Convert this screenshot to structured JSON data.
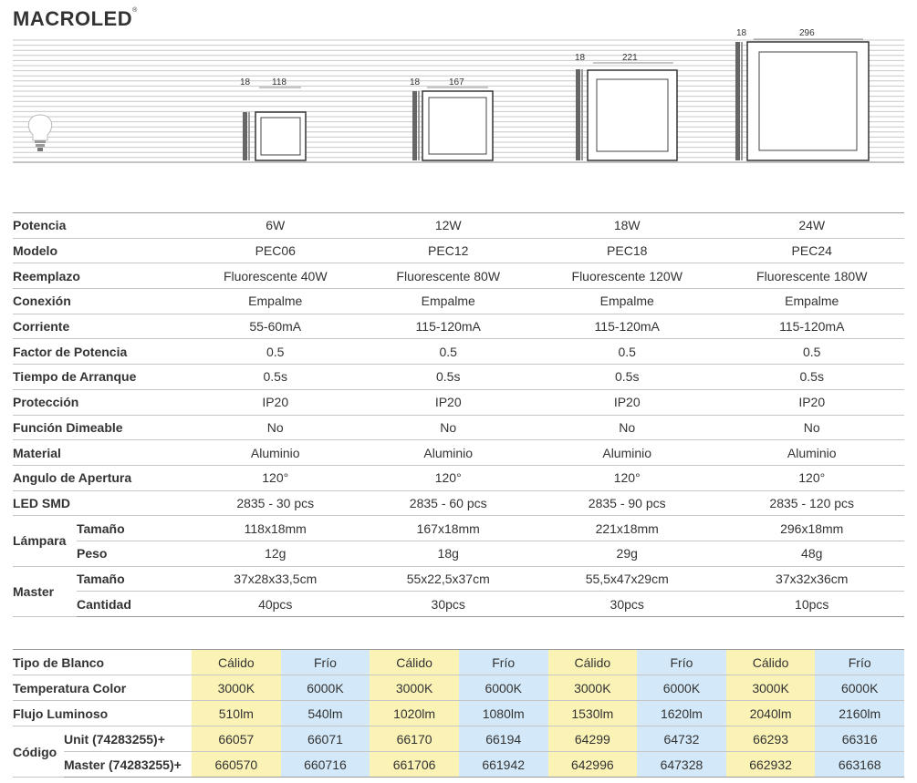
{
  "brand": "MACROLED",
  "brand_mark": "®",
  "diagram": {
    "dims": [
      {
        "depth": "18",
        "width": "118"
      },
      {
        "depth": "18",
        "width": "167"
      },
      {
        "depth": "18",
        "width": "221"
      },
      {
        "depth": "18",
        "width": "296"
      }
    ]
  },
  "spec": {
    "rows": [
      {
        "label": "Potencia",
        "values": [
          "6W",
          "12W",
          "18W",
          "24W"
        ]
      },
      {
        "label": "Modelo",
        "values": [
          "PEC06",
          "PEC12",
          "PEC18",
          "PEC24"
        ]
      },
      {
        "label": "Reemplazo",
        "values": [
          "Fluorescente 40W",
          "Fluorescente 80W",
          "Fluorescente 120W",
          "Fluorescente 180W"
        ]
      },
      {
        "label": "Conexión",
        "values": [
          "Empalme",
          "Empalme",
          "Empalme",
          "Empalme"
        ]
      },
      {
        "label": "Corriente",
        "values": [
          "55-60mA",
          "115-120mA",
          "115-120mA",
          "115-120mA"
        ]
      },
      {
        "label": "Factor de Potencia",
        "values": [
          "0.5",
          "0.5",
          "0.5",
          "0.5"
        ]
      },
      {
        "label": "Tiempo de Arranque",
        "values": [
          "0.5s",
          "0.5s",
          "0.5s",
          "0.5s"
        ]
      },
      {
        "label": "Protección",
        "values": [
          "IP20",
          "IP20",
          "IP20",
          "IP20"
        ]
      },
      {
        "label": "Función Dimeable",
        "values": [
          "No",
          "No",
          "No",
          "No"
        ]
      },
      {
        "label": "Material",
        "values": [
          "Aluminio",
          "Aluminio",
          "Aluminio",
          "Aluminio"
        ]
      },
      {
        "label": "Angulo de Apertura",
        "values": [
          "120°",
          "120°",
          "120°",
          "120°"
        ]
      },
      {
        "label": "LED SMD",
        "values": [
          "2835 - 30 pcs",
          "2835 - 60 pcs",
          "2835 - 90 pcs",
          "2835 - 120 pcs"
        ]
      }
    ],
    "lampara": {
      "label": "Lámpara",
      "tamano": {
        "label": "Tamaño",
        "values": [
          "118x18mm",
          "167x18mm",
          "221x18mm",
          "296x18mm"
        ]
      },
      "peso": {
        "label": "Peso",
        "values": [
          "12g",
          "18g",
          "29g",
          "48g"
        ]
      }
    },
    "master": {
      "label": "Master",
      "tamano": {
        "label": "Tamaño",
        "values": [
          "37x28x33,5cm",
          "55x22,5x37cm",
          "55,5x47x29cm",
          "37x32x36cm"
        ]
      },
      "cantidad": {
        "label": "Cantidad",
        "values": [
          "40pcs",
          "30pcs",
          "30pcs",
          "10pcs"
        ]
      }
    }
  },
  "tone": {
    "tipo": {
      "label": "Tipo de Blanco",
      "values": [
        "Cálido",
        "Frío",
        "Cálido",
        "Frío",
        "Cálido",
        "Frío",
        "Cálido",
        "Frío"
      ]
    },
    "temp": {
      "label": "Temperatura Color",
      "values": [
        "3000K",
        "6000K",
        "3000K",
        "6000K",
        "3000K",
        "6000K",
        "3000K",
        "6000K"
      ]
    },
    "flujo": {
      "label": "Flujo Luminoso",
      "values": [
        "510lm",
        "540lm",
        "1020lm",
        "1080lm",
        "1530lm",
        "1620lm",
        "2040lm",
        "2160lm"
      ]
    },
    "codigo": {
      "label": "Código",
      "unit": {
        "label": "Unit    (74283255)+",
        "values": [
          "66057",
          "66071",
          "66170",
          "66194",
          "64299",
          "64732",
          "66293",
          "66316"
        ]
      },
      "master": {
        "label": "Master (74283255)+",
        "values": [
          "660570",
          "660716",
          "661706",
          "661942",
          "642996",
          "647328",
          "662932",
          "663168"
        ]
      }
    },
    "colors": {
      "warm": "#fbf2b6",
      "cold": "#d3e9f9"
    }
  }
}
